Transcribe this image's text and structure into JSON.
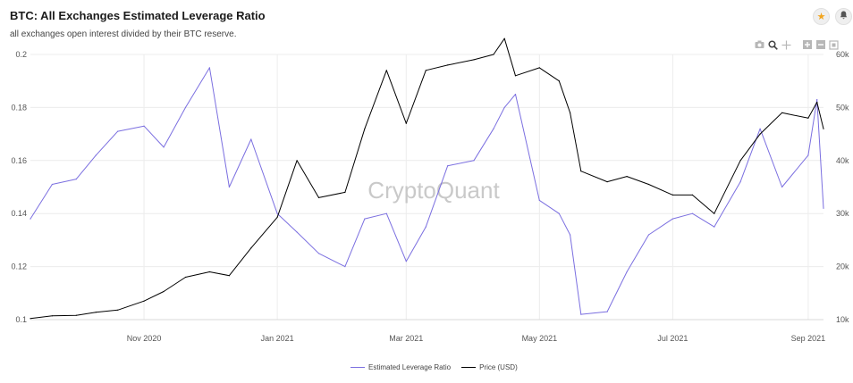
{
  "header": {
    "title": "BTC: All Exchanges Estimated Leverage Ratio",
    "subtitle": "all exchanges open interest divided by their BTC reserve."
  },
  "buttons": {
    "star_icon": "star-icon",
    "bell_icon": "bell-icon"
  },
  "toolbar": {
    "icons": [
      "camera-icon",
      "zoom-icon",
      "pan-icon",
      "zoom-in-icon",
      "zoom-out-icon",
      "reset-icon"
    ]
  },
  "watermark": "CryptoQuant",
  "colors": {
    "leverage": "#7b6fe0",
    "price": "#000000",
    "grid": "#ececec"
  },
  "chart_data": {
    "type": "line",
    "x": [
      "2020-09-10",
      "2020-09-20",
      "2020-10-01",
      "2020-10-10",
      "2020-10-20",
      "2020-11-01",
      "2020-11-10",
      "2020-11-20",
      "2020-12-01",
      "2020-12-10",
      "2020-12-20",
      "2021-01-01",
      "2021-01-10",
      "2021-01-20",
      "2021-02-01",
      "2021-02-10",
      "2021-02-20",
      "2021-03-01",
      "2021-03-10",
      "2021-03-20",
      "2021-04-01",
      "2021-04-10",
      "2021-04-15",
      "2021-04-20",
      "2021-05-01",
      "2021-05-10",
      "2021-05-15",
      "2021-05-20",
      "2021-06-01",
      "2021-06-10",
      "2021-06-20",
      "2021-07-01",
      "2021-07-10",
      "2021-07-20",
      "2021-08-01",
      "2021-08-10",
      "2021-08-20",
      "2021-09-01",
      "2021-09-05",
      "2021-09-08"
    ],
    "series": [
      {
        "name": "Estimated Leverage Ratio",
        "axis": "left",
        "values": [
          0.138,
          0.151,
          0.153,
          0.162,
          0.171,
          0.173,
          0.165,
          0.18,
          0.195,
          0.15,
          0.168,
          0.14,
          0.133,
          0.125,
          0.12,
          0.138,
          0.14,
          0.122,
          0.135,
          0.158,
          0.16,
          0.172,
          0.18,
          0.185,
          0.145,
          0.14,
          0.132,
          0.102,
          0.103,
          0.118,
          0.132,
          0.138,
          0.14,
          0.135,
          0.152,
          0.172,
          0.15,
          0.162,
          0.183,
          0.142
        ]
      },
      {
        "name": "Price (USD)",
        "axis": "right",
        "values": [
          10200,
          10700,
          10800,
          11400,
          11800,
          13500,
          15300,
          18000,
          19000,
          18300,
          23500,
          29300,
          40000,
          33000,
          34000,
          46000,
          57000,
          47000,
          57000,
          58000,
          59000,
          60000,
          63000,
          56000,
          57500,
          55000,
          49000,
          38000,
          36000,
          37000,
          35500,
          33500,
          33500,
          30000,
          40000,
          45000,
          49000,
          48000,
          51000,
          46000
        ]
      }
    ],
    "xticks": [
      "Nov 2020",
      "Jan 2021",
      "Mar 2021",
      "May 2021",
      "Jul 2021",
      "Sep 2021"
    ],
    "xtick_dates": [
      "2020-11-01",
      "2021-01-01",
      "2021-03-01",
      "2021-05-01",
      "2021-07-01",
      "2021-09-01"
    ],
    "xrange": [
      "2020-09-10",
      "2021-09-08"
    ],
    "yleft": {
      "ticks": [
        "0.1",
        "0.12",
        "0.14",
        "0.16",
        "0.18",
        "0.2"
      ],
      "ylim": [
        0.1,
        0.2
      ]
    },
    "yright": {
      "ticks": [
        "10k",
        "20k",
        "30k",
        "40k",
        "50k",
        "60k"
      ],
      "ylim": [
        10000,
        60000
      ]
    },
    "legend": {
      "placement": "bottom-center",
      "entries": [
        "Estimated Leverage Ratio",
        "Price (USD)"
      ]
    },
    "grid": true
  }
}
